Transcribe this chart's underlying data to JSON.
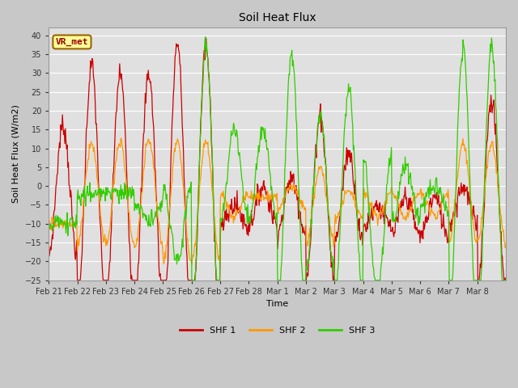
{
  "title": "Soil Heat Flux",
  "ylabel": "Soil Heat Flux (W/m2)",
  "xlabel": "Time",
  "annotation_text": "VR_met",
  "ylim": [
    -25,
    42
  ],
  "yticks": [
    -25,
    -20,
    -15,
    -10,
    -5,
    0,
    5,
    10,
    15,
    20,
    25,
    30,
    35,
    40
  ],
  "line_colors": [
    "#cc0000",
    "#ff9900",
    "#33cc00"
  ],
  "line_labels": [
    "SHF 1",
    "SHF 2",
    "SHF 3"
  ],
  "fig_bg": "#c8c8c8",
  "axes_bg": "#e0e0e0",
  "grid_color": "#ffffff",
  "annotation_bg": "#ffff99",
  "annotation_border": "#996600",
  "annotation_text_color": "#990000",
  "num_days": 16,
  "x_tick_labels": [
    "Feb 21",
    "Feb 22",
    "Feb 23",
    "Feb 24",
    "Feb 25",
    "Feb 26",
    "Feb 27",
    "Feb 28",
    "Mar 1",
    "Mar 2",
    "Mar 3",
    "Mar 4",
    "Mar 5",
    "Mar 6",
    "Mar 7",
    "Mar 8"
  ],
  "title_fontsize": 10,
  "label_fontsize": 8,
  "tick_fontsize": 7,
  "legend_fontsize": 8
}
